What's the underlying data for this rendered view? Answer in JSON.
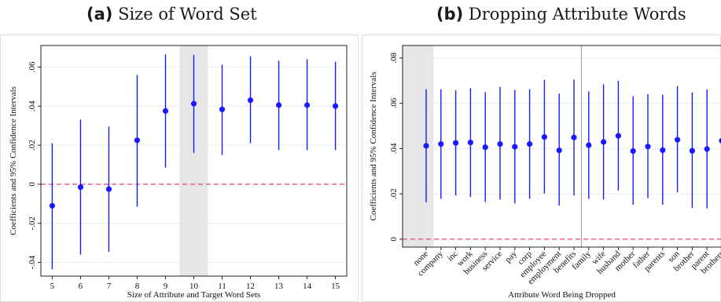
{
  "panels": {
    "a": {
      "tag": "(a)",
      "title": "Size of Word Set"
    },
    "b": {
      "tag": "(b)",
      "title": "Dropping Attribute Words"
    }
  },
  "colors": {
    "point": "#1a1aff",
    "ci": "#1a1aff",
    "zero": "#e8408a",
    "shade": "#e6e6e6",
    "axis": "#222222",
    "grid": "#eeeeee"
  },
  "chart_data": [
    {
      "type": "scatter",
      "title": "Size of Word Set",
      "xlabel": "Size of Attribute and Target Word Sets",
      "ylabel": "Coefficients and 95% Confidence Intervals",
      "x": [
        5,
        6,
        7,
        8,
        9,
        10,
        11,
        12,
        13,
        14,
        15
      ],
      "y": [
        -0.011,
        -0.0015,
        -0.0025,
        0.0225,
        0.0375,
        0.0412,
        0.0383,
        0.043,
        0.0405,
        0.0405,
        0.04
      ],
      "ci_low": [
        -0.0435,
        -0.036,
        -0.0345,
        -0.0115,
        0.0085,
        0.016,
        0.015,
        0.021,
        0.0175,
        0.0175,
        0.0175
      ],
      "ci_high": [
        0.021,
        0.033,
        0.0295,
        0.056,
        0.0665,
        0.0662,
        0.0612,
        0.0655,
        0.0632,
        0.064,
        0.0627
      ],
      "xticks": [
        "5",
        "6",
        "7",
        "8",
        "9",
        "10",
        "11",
        "12",
        "13",
        "14",
        "15"
      ],
      "yticks": [
        -0.04,
        -0.02,
        0,
        0.02,
        0.04,
        0.06
      ],
      "ytick_labels": [
        "-.04",
        "-.02",
        "0",
        ".02",
        ".04",
        ".06"
      ],
      "xlim": [
        4.6,
        15.4
      ],
      "ylim": [
        -0.047,
        0.071
      ],
      "shaded_x": 10,
      "reference_line_y": 0,
      "grid": true
    },
    {
      "type": "scatter",
      "title": "Dropping Attribute Words",
      "xlabel": "Attribute Word Being Dropped",
      "ylabel": "Coefficients and 95% Confidence Intervals",
      "categories": [
        "none",
        "company",
        "inc",
        "work",
        "business",
        "service",
        "pay",
        "corp",
        "employee",
        "employment",
        "benefits",
        "family",
        "wife",
        "husband",
        "mother",
        "father",
        "parents",
        "son",
        "brother",
        "parent",
        "brothers"
      ],
      "y": [
        0.0412,
        0.042,
        0.0425,
        0.0427,
        0.0406,
        0.042,
        0.0408,
        0.042,
        0.0451,
        0.0392,
        0.0449,
        0.0415,
        0.0429,
        0.0456,
        0.0389,
        0.0409,
        0.0393,
        0.0439,
        0.039,
        0.0398,
        0.0435
      ],
      "ci_low": [
        0.0163,
        0.0178,
        0.0193,
        0.0186,
        0.0164,
        0.0175,
        0.0158,
        0.0178,
        0.0202,
        0.0148,
        0.0193,
        0.0178,
        0.0175,
        0.0215,
        0.0152,
        0.0181,
        0.0152,
        0.0207,
        0.0138,
        0.0136,
        0.0182
      ],
      "ci_high": [
        0.0662,
        0.0662,
        0.0657,
        0.0667,
        0.0649,
        0.0672,
        0.0659,
        0.0662,
        0.0703,
        0.0643,
        0.0705,
        0.0653,
        0.0684,
        0.0699,
        0.0631,
        0.0641,
        0.0637,
        0.0676,
        0.0648,
        0.0661,
        0.0696
      ],
      "yticks": [
        0,
        0.02,
        0.04,
        0.06,
        0.08
      ],
      "ytick_labels": [
        "0",
        ".02",
        ".04",
        ".06",
        ".08"
      ],
      "ylim": [
        -0.0035,
        0.0855
      ],
      "shaded_category": "none",
      "divider_after": "benefits",
      "reference_line_y": 0,
      "grid": true
    }
  ]
}
